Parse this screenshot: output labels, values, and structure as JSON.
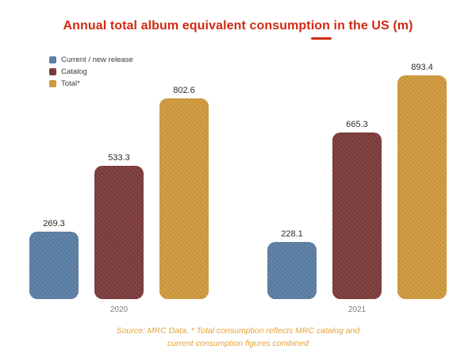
{
  "title": "Annual total album equivalent consumption in the US (m)",
  "accent_color": "#cf2b12",
  "source_note": "Source: MRC Data. * Total consumption reflects MRC catalog and current consumption figures combined",
  "chart_data": {
    "type": "bar",
    "title": "Annual total album equivalent consumption in the US (m)",
    "categories": [
      "2020",
      "2021"
    ],
    "series": [
      {
        "name": "Current / new release",
        "color": "#5b7fa5",
        "values": [
          269.3,
          228.1
        ]
      },
      {
        "name": "Catalog",
        "color": "#7d3b3b",
        "values": [
          533.3,
          665.3
        ]
      },
      {
        "name": "Total*",
        "color": "#d19a3d",
        "values": [
          802.6,
          893.4
        ]
      }
    ],
    "xlabel": "",
    "ylabel": "",
    "ylim": [
      0,
      950
    ],
    "grid": false,
    "legend_position": "top-left",
    "value_labels": true
  }
}
